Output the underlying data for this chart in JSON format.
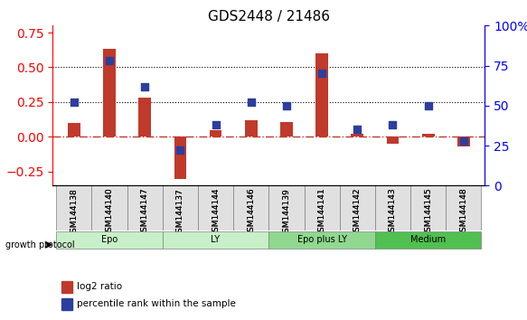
{
  "title": "GDS2448 / 21486",
  "samples": [
    "GSM144138",
    "GSM144140",
    "GSM144147",
    "GSM144137",
    "GSM144144",
    "GSM144146",
    "GSM144139",
    "GSM144141",
    "GSM144142",
    "GSM144143",
    "GSM144145",
    "GSM144148"
  ],
  "log2_ratio": [
    0.1,
    0.63,
    0.28,
    -0.3,
    0.05,
    0.12,
    0.11,
    0.6,
    0.02,
    -0.05,
    0.02,
    -0.07
  ],
  "percentile_rank": [
    52,
    78,
    62,
    22,
    38,
    52,
    50,
    70,
    35,
    38,
    50,
    28
  ],
  "bar_color": "#c0392b",
  "dot_color": "#2c3e9e",
  "zero_line_color": "#c0392b",
  "hline_color": "black",
  "hline_y": [
    0.25,
    0.5
  ],
  "ylim_left": [
    -0.35,
    0.8
  ],
  "ylim_right": [
    0,
    100
  ],
  "yticks_left": [
    -0.25,
    0.0,
    0.25,
    0.5,
    0.75
  ],
  "yticks_right": [
    0,
    25,
    50,
    75,
    100
  ],
  "groups": [
    {
      "label": "Epo",
      "start": 0,
      "end": 3,
      "color": "#c8f0c8"
    },
    {
      "label": "LY",
      "start": 3,
      "end": 6,
      "color": "#c8f0c8"
    },
    {
      "label": "Epo plus LY",
      "start": 6,
      "end": 9,
      "color": "#90d890"
    },
    {
      "label": "Medium",
      "start": 9,
      "end": 12,
      "color": "#50c050"
    }
  ],
  "group_label_prefix": "growth protocol",
  "legend_log2": "log2 ratio",
  "legend_pct": "percentile rank within the sample",
  "bar_width": 0.35,
  "dot_size": 40
}
